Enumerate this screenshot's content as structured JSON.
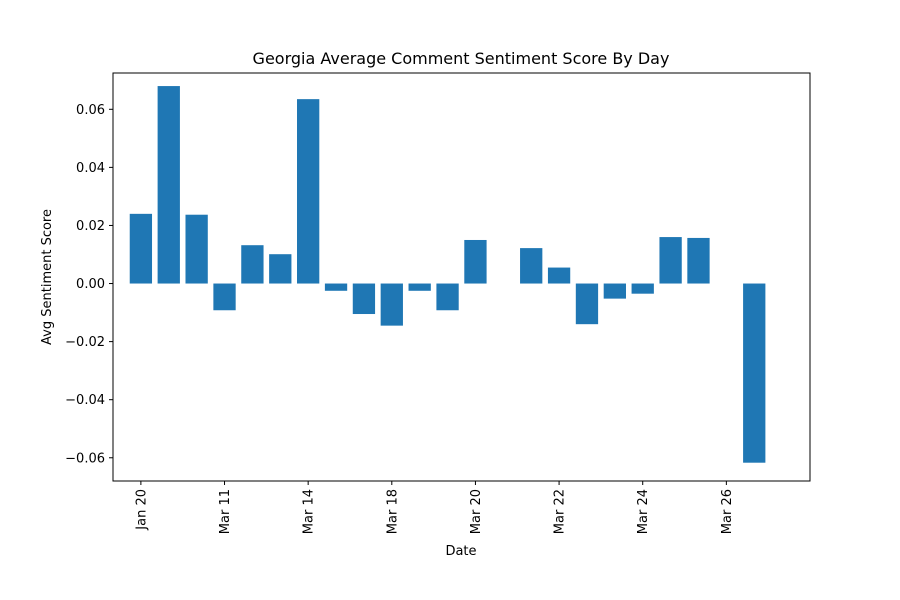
{
  "chart_data": {
    "type": "bar",
    "title": "Georgia Average Comment Sentiment Score By Day",
    "xlabel": "Date",
    "ylabel": "Avg Sentiment Score",
    "ylim": [
      -0.068,
      0.0725
    ],
    "yticks": [
      -0.06,
      -0.04,
      -0.02,
      0.0,
      0.02,
      0.04,
      0.06
    ],
    "ytick_labels": [
      "−0.06",
      "−0.04",
      "−0.02",
      "0.00",
      "0.02",
      "0.04",
      "0.06"
    ],
    "xticks": [
      {
        "pos": 0,
        "label": "Jan 20"
      },
      {
        "pos": 3,
        "label": "Mar 11"
      },
      {
        "pos": 6,
        "label": "Mar 14"
      },
      {
        "pos": 9,
        "label": "Mar 18"
      },
      {
        "pos": 12,
        "label": "Mar 20"
      },
      {
        "pos": 15,
        "label": "Mar 22"
      },
      {
        "pos": 18,
        "label": "Mar 24"
      },
      {
        "pos": 21,
        "label": "Mar 26"
      }
    ],
    "xlim": [
      -1,
      24
    ],
    "bar_color": "#1f77b4",
    "bars": [
      {
        "x": 0,
        "value": 0.024
      },
      {
        "x": 1,
        "value": 0.068
      },
      {
        "x": 2,
        "value": 0.0237
      },
      {
        "x": 3,
        "value": -0.0092
      },
      {
        "x": 4,
        "value": 0.0132
      },
      {
        "x": 5,
        "value": 0.0101
      },
      {
        "x": 6,
        "value": 0.0635
      },
      {
        "x": 7,
        "value": -0.0025
      },
      {
        "x": 8,
        "value": -0.0105
      },
      {
        "x": 9,
        "value": -0.0145
      },
      {
        "x": 10,
        "value": -0.0025
      },
      {
        "x": 11,
        "value": -0.0092
      },
      {
        "x": 12,
        "value": 0.015
      },
      {
        "x": 14,
        "value": 0.0122
      },
      {
        "x": 15,
        "value": 0.0055
      },
      {
        "x": 16,
        "value": -0.014
      },
      {
        "x": 17,
        "value": -0.0052
      },
      {
        "x": 18,
        "value": -0.0035
      },
      {
        "x": 19,
        "value": 0.016
      },
      {
        "x": 20,
        "value": 0.0157
      },
      {
        "x": 22,
        "value": -0.0617
      }
    ],
    "grid": false,
    "legend": "none"
  }
}
